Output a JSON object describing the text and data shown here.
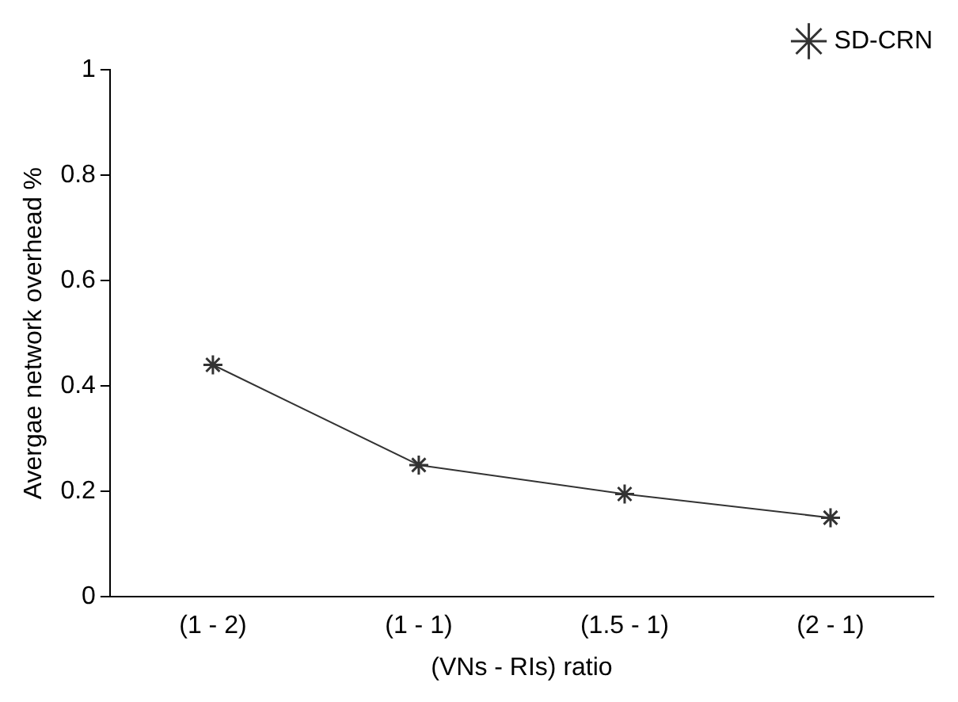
{
  "chart_data": {
    "type": "line",
    "xlabel": "(VNs - RIs) ratio",
    "ylabel": "Avergae network overhead %",
    "categories": [
      "(1 - 2)",
      "(1 - 1)",
      "(1.5 - 1)",
      "(2 - 1)"
    ],
    "series": [
      {
        "name": "SD-CRN",
        "color": "#333333",
        "values": [
          0.44,
          0.25,
          0.195,
          0.15
        ]
      }
    ],
    "ylim": [
      0,
      1
    ],
    "yticks": [
      0,
      0.2,
      0.4,
      0.6,
      0.8,
      1
    ],
    "grid": false,
    "legend": "top right",
    "marker": "cross",
    "line_style": "solid"
  }
}
